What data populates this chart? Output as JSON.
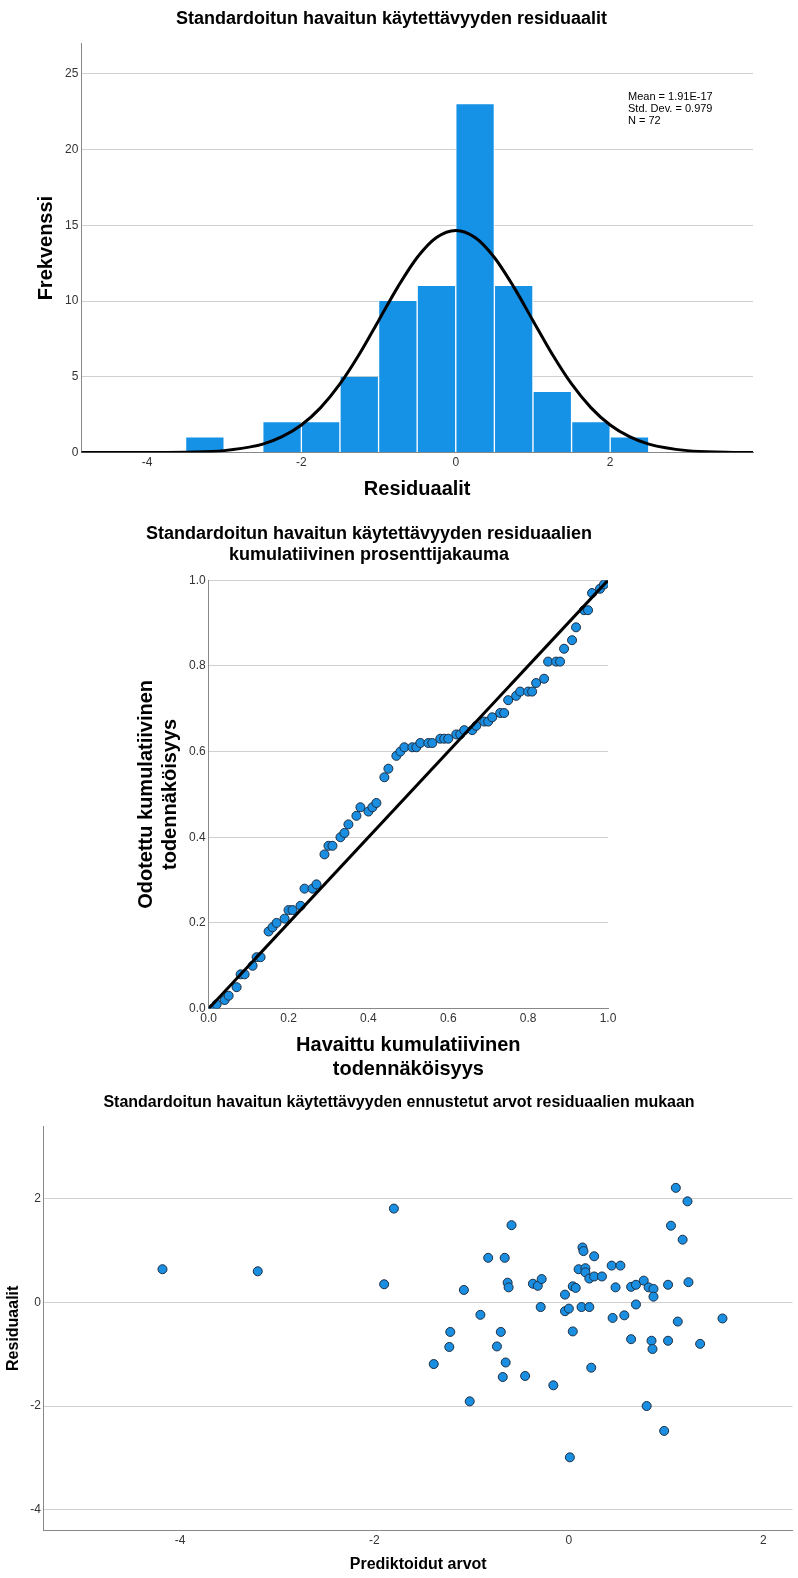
{
  "chart_data": [
    {
      "type": "histogram",
      "title": "Standardoitun havaitun käytettävyyden residuaalit",
      "xlabel": "Residuaalit",
      "ylabel": "Frekvenssi",
      "bins": [
        -3.5,
        -3,
        -2.5,
        -2,
        -1.5,
        -1,
        -0.5,
        0,
        0.5,
        1,
        1.5,
        2,
        2.5
      ],
      "values": [
        1,
        0,
        2,
        2,
        5,
        10,
        11,
        23,
        11,
        4,
        2,
        1
      ],
      "color": "#1591e6",
      "series": [
        {
          "type": "line",
          "color": "#000000",
          "x": [
            -4.85,
            -4,
            -3.5,
            -3,
            -2.5,
            -2.25,
            -2,
            -1.75,
            -1.5,
            -1.25,
            -1,
            -0.75,
            -0.5,
            -0.25,
            0,
            0.25,
            0.5,
            0.75,
            1,
            1.25,
            1.5,
            1.75,
            2,
            2.25,
            2.5,
            3,
            3.5,
            3.85
          ],
          "values": [
            0,
            0,
            0.03,
            0.13,
            0.56,
            1.05,
            1.82,
            2.97,
            4.53,
            6.49,
            8.71,
            10.94,
            12.88,
            14.2,
            14.67,
            14.2,
            12.88,
            10.94,
            8.71,
            6.49,
            4.53,
            2.97,
            1.82,
            1.05,
            0.56,
            0.13,
            0.03,
            0
          ]
        }
      ],
      "xlim": [
        -4.85,
        3.85
      ],
      "xticks": [
        -4,
        -2,
        0,
        2
      ],
      "ylim": [
        0,
        27
      ],
      "yticks": [
        0,
        5,
        10,
        15,
        20,
        25
      ],
      "grid": "y",
      "annotations": [
        "Mean = 1.91E-17",
        "Std. Dev. = 0.979",
        "N = 72"
      ]
    },
    {
      "type": "scatter",
      "title": "Standardoitun havaitun käytettävyyden residuaalien kumulatiivinen prosenttijakauma",
      "xlabel": "Havaittu kumulatiivinen todennäköisyys",
      "ylabel": "Odotettu kumulatiivinen todennäköisyys",
      "marker": "circle",
      "series": [
        {
          "type": "scatter",
          "color": "#1a8ee0",
          "x": [
            0.01,
            0.02,
            0.04,
            0.05,
            0.07,
            0.08,
            0.09,
            0.11,
            0.12,
            0.13,
            0.15,
            0.16,
            0.17,
            0.19,
            0.2,
            0.21,
            0.23,
            0.24,
            0.26,
            0.27,
            0.29,
            0.3,
            0.31,
            0.33,
            0.34,
            0.35,
            0.37,
            0.38,
            0.4,
            0.41,
            0.42,
            0.44,
            0.45,
            0.47,
            0.48,
            0.49,
            0.51,
            0.52,
            0.53,
            0.55,
            0.56,
            0.58,
            0.59,
            0.6,
            0.62,
            0.63,
            0.64,
            0.66,
            0.67,
            0.69,
            0.7,
            0.71,
            0.73,
            0.74,
            0.75,
            0.77,
            0.78,
            0.8,
            0.81,
            0.82,
            0.84,
            0.85,
            0.87,
            0.88,
            0.89,
            0.91,
            0.92,
            0.94,
            0.95,
            0.96,
            0.98,
            0.99
          ],
          "values": [
            0,
            0.01,
            0.02,
            0.03,
            0.05,
            0.08,
            0.08,
            0.1,
            0.12,
            0.12,
            0.18,
            0.19,
            0.2,
            0.21,
            0.23,
            0.23,
            0.24,
            0.28,
            0.28,
            0.29,
            0.36,
            0.38,
            0.38,
            0.4,
            0.41,
            0.43,
            0.45,
            0.47,
            0.46,
            0.47,
            0.48,
            0.54,
            0.56,
            0.59,
            0.6,
            0.61,
            0.61,
            0.61,
            0.62,
            0.62,
            0.62,
            0.63,
            0.63,
            0.63,
            0.64,
            0.64,
            0.65,
            0.65,
            0.66,
            0.67,
            0.67,
            0.68,
            0.69,
            0.69,
            0.72,
            0.73,
            0.74,
            0.74,
            0.74,
            0.76,
            0.77,
            0.81,
            0.81,
            0.81,
            0.84,
            0.86,
            0.89,
            0.93,
            0.93,
            0.97,
            0.98,
            0.99
          ]
        },
        {
          "type": "line",
          "color": "#000000",
          "marker": "none",
          "x": [
            0,
            1
          ],
          "values": [
            0,
            1
          ]
        }
      ],
      "xlim": [
        0,
        1
      ],
      "xticks": [
        {
          "value": 0,
          "label": "0.0"
        },
        0.2,
        0.4,
        0.6,
        0.8,
        {
          "value": 1,
          "label": "1.0"
        }
      ],
      "ylim": [
        0,
        1
      ],
      "yticks": [
        {
          "value": 0,
          "label": "0.0"
        },
        0.2,
        0.4,
        0.6,
        0.8,
        {
          "value": 1,
          "label": "1.0"
        }
      ],
      "grid": "y"
    },
    {
      "type": "scatter",
      "title": "Standardoitun havaitun käytettävyyden ennustetut arvot residuaalien mukaan",
      "xlabel": "Prediktoidut arvot",
      "ylabel": "Residuaalit",
      "marker": "circle",
      "color": "#1a8ee0",
      "x": [
        -4.18,
        -3.2,
        -1.9,
        -1.8,
        -0.59,
        -0.83,
        -0.66,
        -1.08,
        -0.63,
        -0.62,
        -0.37,
        -0.32,
        -0.28,
        -0.29,
        -0.91,
        -1.22,
        -1.23,
        -0.7,
        -0.74,
        -0.65,
        -0.68,
        -1.39,
        -0.45,
        -0.16,
        -1.02,
        0.01,
        -0.04,
        0.04,
        0.07,
        -0.04,
        0,
        0.04,
        0.13,
        0.21,
        0.23,
        0.14,
        0.15,
        0.26,
        0.1,
        0.17,
        0.17,
        0.21,
        0.26,
        0.34,
        0.44,
        0.53,
        0.48,
        0.45,
        0.57,
        0.64,
        0.64,
        0.69,
        0.69,
        0.77,
        0.82,
        0.87,
        0.87,
        0.85,
        0.86,
        0.8,
        0.98,
        1.02,
        1.02,
        1.12,
        1.05,
        1.1,
        1.22,
        1.17,
        1.23,
        1.35,
        1.58
      ],
      "values": [
        0.64,
        0.6,
        0.35,
        1.81,
        1.49,
        0.86,
        0.86,
        0.24,
        0.38,
        0.29,
        0.36,
        0.32,
        0.45,
        -0.09,
        -0.24,
        -0.57,
        -0.86,
        -0.57,
        -0.85,
        -1.16,
        -1.44,
        -1.19,
        -1.42,
        -1.6,
        -1.91,
        -2.99,
        0.15,
        0.31,
        0.28,
        -0.17,
        -0.12,
        -0.56,
        -0.09,
        -0.09,
        -1.26,
        1.06,
        0.99,
        0.89,
        0.64,
        0.66,
        0.58,
        0.46,
        0.5,
        0.5,
        0.71,
        0.71,
        0.29,
        -0.3,
        -0.25,
        -0.71,
        0.3,
        0.34,
        -0.04,
        0.42,
        0.29,
        0.26,
        0.11,
        -0.74,
        -0.9,
        -2,
        -2.48,
        0.34,
        -0.74,
        -0.37,
        1.48,
        2.21,
        1.95,
        1.21,
        0.39,
        -0.8,
        -0.31
      ],
      "xlim": [
        -5.4,
        2.3
      ],
      "xticks": [
        -4,
        -2,
        0,
        2
      ],
      "ylim": [
        -4.4,
        3.4
      ],
      "yticks": [
        -4,
        -2,
        0,
        2
      ],
      "grid": "y"
    }
  ]
}
